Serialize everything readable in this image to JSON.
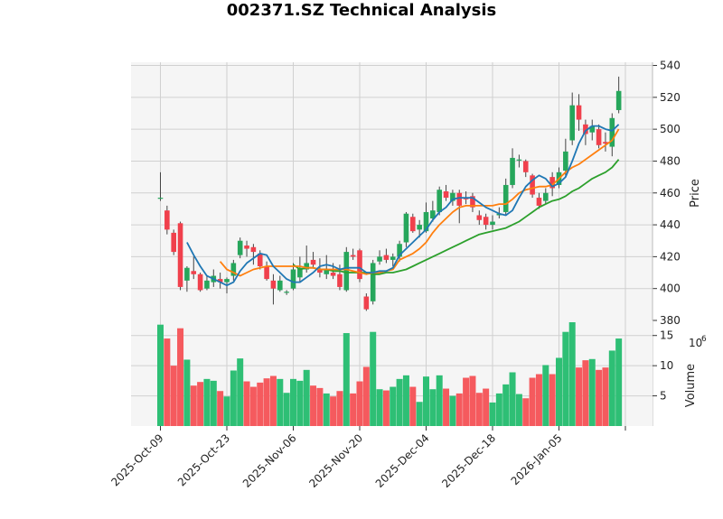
{
  "chart_data": {
    "type": "candlestick",
    "title": "002371.SZ Technical Analysis",
    "price_axis": {
      "label": "Price",
      "ylim": [
        380,
        542
      ],
      "ticks": [
        380,
        400,
        420,
        440,
        460,
        480,
        500,
        520,
        540
      ]
    },
    "volume_axis": {
      "label": "Volume",
      "exponent_label": "10",
      "exponent": "6",
      "ylim": [
        0,
        17.5
      ],
      "ticks": [
        5,
        10,
        15
      ]
    },
    "x_ticks": [
      {
        "index": 0,
        "label": "2025-Oct-09"
      },
      {
        "index": 10,
        "label": "2025-Oct-23"
      },
      {
        "index": 20,
        "label": "2025-Nov-06"
      },
      {
        "index": 30,
        "label": "2025-Nov-20"
      },
      {
        "index": 40,
        "label": "2025-Dec-04"
      },
      {
        "index": 50,
        "label": "2025-Dec-18"
      },
      {
        "index": 60,
        "label": "2026-Jan-05"
      },
      {
        "index": 70,
        "label": ""
      }
    ],
    "grid": true,
    "colors": {
      "up": "#26a65b",
      "down": "#f0404c",
      "vol_up": "#2ebf75",
      "vol_down": "#f55a5e",
      "ma_short": "#1f77b4",
      "ma_mid": "#ff7f0e",
      "ma_long": "#2ca02c",
      "panel_bg": "#f5f5f5",
      "grid": "#d0d0d0"
    },
    "candles": [
      [
        457.0,
        457.0,
        473.0,
        455.0
      ],
      [
        449.0,
        437.0,
        452.0,
        434.0
      ],
      [
        435.0,
        423.0,
        437.0,
        421.0
      ],
      [
        441.0,
        401.0,
        442.0,
        399.0
      ],
      [
        405.0,
        413.0,
        414.0,
        398.0
      ],
      [
        411.0,
        409.0,
        420.0,
        406.0
      ],
      [
        409.0,
        399.0,
        410.0,
        398.0
      ],
      [
        400.0,
        405.0,
        408.0,
        399.0
      ],
      [
        404.0,
        408.0,
        412.0,
        401.0
      ],
      [
        406.0,
        404.0,
        410.0,
        400.0
      ],
      [
        404.0,
        406.0,
        407.0,
        397.0
      ],
      [
        408.0,
        416.0,
        418.0,
        405.0
      ],
      [
        421.0,
        430.0,
        432.0,
        419.0
      ],
      [
        427.0,
        425.0,
        430.0,
        420.0
      ],
      [
        426.0,
        423.0,
        428.0,
        415.0
      ],
      [
        422.0,
        414.0,
        424.0,
        412.0
      ],
      [
        414.0,
        406.0,
        417.0,
        405.0
      ],
      [
        405.0,
        400.0,
        409.0,
        390.0
      ],
      [
        399.0,
        405.0,
        408.0,
        398.0
      ],
      [
        398.0,
        398.0,
        399.0,
        396.0
      ],
      [
        400.0,
        412.0,
        416.0,
        399.0
      ],
      [
        407.0,
        413.0,
        420.0,
        404.0
      ],
      [
        412.0,
        416.0,
        427.0,
        410.0
      ],
      [
        418.0,
        415.0,
        423.0,
        413.0
      ],
      [
        412.0,
        410.0,
        419.0,
        407.0
      ],
      [
        409.0,
        412.0,
        421.0,
        406.0
      ],
      [
        410.0,
        408.0,
        416.0,
        406.0
      ],
      [
        409.0,
        401.0,
        415.0,
        399.0
      ],
      [
        399.0,
        423.0,
        426.0,
        398.0
      ],
      [
        421.0,
        420.0,
        425.0,
        418.0
      ],
      [
        424.0,
        406.0,
        425.0,
        404.0
      ],
      [
        395.0,
        387.0,
        397.0,
        386.0
      ],
      [
        392.0,
        416.0,
        418.0,
        390.0
      ],
      [
        417.0,
        420.0,
        424.0,
        415.0
      ],
      [
        421.0,
        418.0,
        425.0,
        416.0
      ],
      [
        418.0,
        420.0,
        422.0,
        414.0
      ],
      [
        420.0,
        428.0,
        430.0,
        417.0
      ],
      [
        429.0,
        447.0,
        448.0,
        426.0
      ],
      [
        445.0,
        436.0,
        447.0,
        435.0
      ],
      [
        437.0,
        440.0,
        443.0,
        432.0
      ],
      [
        436.0,
        448.0,
        454.0,
        435.0
      ],
      [
        444.0,
        449.0,
        455.0,
        442.0
      ],
      [
        448.0,
        462.0,
        464.0,
        446.0
      ],
      [
        461.0,
        457.0,
        465.0,
        455.0
      ],
      [
        455.0,
        460.0,
        462.0,
        452.0
      ],
      [
        460.0,
        452.0,
        462.0,
        441.0
      ],
      [
        457.0,
        456.0,
        461.0,
        453.0
      ],
      [
        458.0,
        451.0,
        460.0,
        448.0
      ],
      [
        446.0,
        443.0,
        449.0,
        440.0
      ],
      [
        445.0,
        440.0,
        447.0,
        437.0
      ],
      [
        440.0,
        442.0,
        446.0,
        437.0
      ],
      [
        446.0,
        447.0,
        451.0,
        444.0
      ],
      [
        448.0,
        465.0,
        469.0,
        446.0
      ],
      [
        465.0,
        482.0,
        488.0,
        463.0
      ],
      [
        481.0,
        481.0,
        484.0,
        476.0
      ],
      [
        480.0,
        473.0,
        481.0,
        470.0
      ],
      [
        471.0,
        459.0,
        472.0,
        457.0
      ],
      [
        457.0,
        452.0,
        460.0,
        450.0
      ],
      [
        455.0,
        460.0,
        463.0,
        453.0
      ],
      [
        470.0,
        463.0,
        473.0,
        458.0
      ],
      [
        465.0,
        473.0,
        476.0,
        463.0
      ],
      [
        474.0,
        486.0,
        494.0,
        470.0
      ],
      [
        493.0,
        515.0,
        523.0,
        490.0
      ],
      [
        515.0,
        506.0,
        522.0,
        499.0
      ],
      [
        503.0,
        497.0,
        506.0,
        490.0
      ],
      [
        498.0,
        502.0,
        506.0,
        493.0
      ],
      [
        500.0,
        490.0,
        503.0,
        488.0
      ],
      [
        492.0,
        491.0,
        498.0,
        486.0
      ],
      [
        489.0,
        507.0,
        510.0,
        483.0
      ],
      [
        512.0,
        524.0,
        533.0,
        510.0
      ]
    ],
    "volume": [
      16.8,
      14.5,
      10.0,
      16.2,
      11.0,
      6.7,
      7.3,
      7.8,
      7.5,
      5.8,
      4.9,
      9.2,
      11.2,
      7.4,
      6.5,
      7.2,
      7.9,
      8.3,
      7.8,
      5.5,
      7.8,
      7.5,
      9.3,
      6.7,
      6.3,
      5.4,
      4.9,
      5.8,
      15.4,
      5.4,
      7.4,
      9.8,
      15.6,
      6.1,
      5.9,
      6.5,
      7.8,
      8.4,
      6.5,
      4.0,
      8.2,
      6.1,
      8.4,
      6.2,
      5.0,
      5.4,
      8.0,
      8.3,
      5.5,
      6.2,
      3.9,
      5.4,
      6.9,
      8.9,
      5.3,
      4.6,
      8.0,
      8.6,
      10.1,
      8.6,
      11.3,
      15.6,
      17.2,
      9.7,
      10.9,
      11.1,
      9.3,
      9.7,
      12.5,
      14.5
    ],
    "ma_short": [
      null,
      null,
      null,
      null,
      429.0,
      421.0,
      414.0,
      408.0,
      406.0,
      404.0,
      402.0,
      404.0,
      411.0,
      416.0,
      419.0,
      422.0,
      421.0,
      414.0,
      410.0,
      406.0,
      404.0,
      404.0,
      407.0,
      410.0,
      414.0,
      415.0,
      414.0,
      412.0,
      413.0,
      413.0,
      413.0,
      410.0,
      410.0,
      411.0,
      411.0,
      413.0,
      421.0,
      425.0,
      429.0,
      433.0,
      437.0,
      443.0,
      448.0,
      451.0,
      456.0,
      457.0,
      457.0,
      457.0,
      454.0,
      451.0,
      449.0,
      447.0,
      446.0,
      449.0,
      457.0,
      464.0,
      468.0,
      471.0,
      469.0,
      464.0,
      466.0,
      470.0,
      480.0,
      491.0,
      499.0,
      502.0,
      502.0,
      500.0,
      499.0,
      503.0
    ],
    "ma_mid": [
      null,
      null,
      null,
      null,
      null,
      null,
      null,
      null,
      null,
      417.0,
      412.0,
      410.0,
      408.0,
      410.0,
      412.0,
      413.0,
      414.0,
      414.0,
      414.0,
      414.0,
      414.0,
      414.0,
      413.0,
      413.0,
      412.0,
      412.0,
      412.0,
      412.0,
      412.0,
      411.0,
      410.0,
      409.0,
      410.0,
      410.0,
      411.0,
      412.0,
      418.0,
      420.0,
      422.0,
      425.0,
      429.0,
      435.0,
      440.0,
      444.0,
      448.0,
      451.0,
      452.0,
      452.0,
      452.0,
      452.0,
      452.0,
      453.0,
      453.0,
      456.0,
      460.0,
      462.0,
      463.0,
      464.0,
      464.0,
      465.0,
      469.0,
      473.0,
      476.0,
      478.0,
      481.0,
      484.0,
      487.0,
      490.0,
      493.0,
      500.0
    ],
    "ma_long": [
      null,
      null,
      null,
      null,
      null,
      null,
      null,
      null,
      null,
      null,
      null,
      null,
      null,
      null,
      null,
      null,
      null,
      null,
      null,
      null,
      415.0,
      412.0,
      413.0,
      413.0,
      412.0,
      412.0,
      411.0,
      411.0,
      410.0,
      410.0,
      410.0,
      410.0,
      409.0,
      409.0,
      410.0,
      410.0,
      411.0,
      412.0,
      414.0,
      416.0,
      418.0,
      420.0,
      422.0,
      424.0,
      426.0,
      428.0,
      430.0,
      432.0,
      434.0,
      435.0,
      436.0,
      437.0,
      438.0,
      440.0,
      442.0,
      445.0,
      448.0,
      451.0,
      453.0,
      455.0,
      456.0,
      458.0,
      461.0,
      463.0,
      466.0,
      469.0,
      471.0,
      473.0,
      476.0,
      481.0
    ]
  }
}
